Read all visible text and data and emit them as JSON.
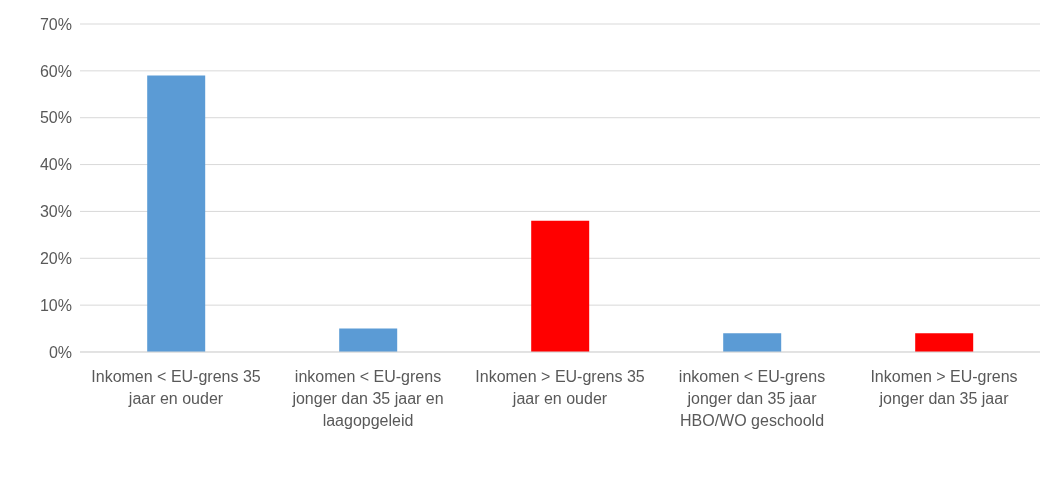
{
  "chart_data": {
    "type": "bar",
    "categories": [
      "Inkomen < EU-grens 35 jaar en ouder",
      "inkomen < EU-grens jonger dan 35 jaar en laagopgeleid",
      "Inkomen > EU-grens 35 jaar en ouder",
      "inkomen < EU-grens jonger dan 35 jaar HBO/WO geschoold",
      "Inkomen > EU-grens jonger dan 35 jaar"
    ],
    "values": [
      59,
      5,
      28,
      4,
      4
    ],
    "colors": [
      "#5b9bd5",
      "#5b9bd5",
      "#ff0000",
      "#5b9bd5",
      "#ff0000"
    ],
    "ylim": [
      0,
      70
    ],
    "yticks": [
      {
        "value": 0,
        "label": "0%"
      },
      {
        "value": 10,
        "label": "10%"
      },
      {
        "value": 20,
        "label": "20%"
      },
      {
        "value": 30,
        "label": "30%"
      },
      {
        "value": 40,
        "label": "40%"
      },
      {
        "value": 50,
        "label": "50%"
      },
      {
        "value": 60,
        "label": "60%"
      },
      {
        "value": 70,
        "label": "70%"
      }
    ],
    "grid": "y",
    "legend": false
  }
}
